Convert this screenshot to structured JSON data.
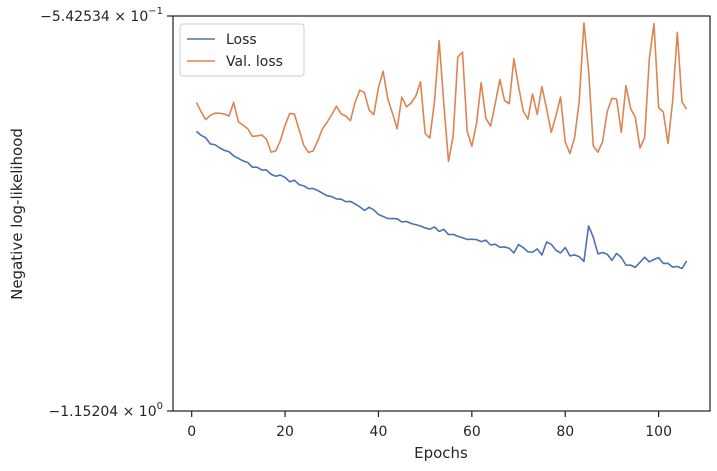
{
  "chart_data": {
    "type": "line",
    "xlabel": "Epochs",
    "ylabel": "Negative log-likelihood",
    "xlim": [
      -4,
      111
    ],
    "ylim": [
      -1.15204,
      -0.542534
    ],
    "xticks": [
      0,
      20,
      40,
      60,
      80,
      100
    ],
    "xtick_labels": [
      "0",
      "20",
      "40",
      "60",
      "80",
      "100"
    ],
    "ytick_labels": {
      "top": {
        "base": "−5.42534",
        "mult": " × 10",
        "exp": "−1"
      },
      "bottom": {
        "base": "−1.15204",
        "mult": " × 10",
        "exp": "0"
      }
    },
    "yscale": "symlog",
    "grid": false,
    "legend": {
      "placement": "top-left"
    },
    "x": [
      1,
      2,
      3,
      4,
      5,
      6,
      7,
      8,
      9,
      10,
      11,
      12,
      13,
      14,
      15,
      16,
      17,
      18,
      19,
      20,
      21,
      22,
      23,
      24,
      25,
      26,
      27,
      28,
      29,
      30,
      31,
      32,
      33,
      34,
      35,
      36,
      37,
      38,
      39,
      40,
      41,
      42,
      43,
      44,
      45,
      46,
      47,
      48,
      49,
      50,
      51,
      52,
      53,
      54,
      55,
      56,
      57,
      58,
      59,
      60,
      61,
      62,
      63,
      64,
      65,
      66,
      67,
      68,
      69,
      70,
      71,
      72,
      73,
      74,
      75,
      76,
      77,
      78,
      79,
      80,
      81,
      82,
      83,
      84,
      85,
      86,
      87,
      88,
      89,
      90,
      91,
      92,
      93,
      94,
      95,
      96,
      97,
      98,
      99,
      100,
      101,
      102,
      103,
      104,
      105,
      106
    ],
    "series": [
      {
        "name": "Loss",
        "color": "#4c72b0",
        "values": [
          -0.7205,
          -0.7266,
          -0.7303,
          -0.74,
          -0.7412,
          -0.746,
          -0.7498,
          -0.752,
          -0.7584,
          -0.7621,
          -0.7661,
          -0.7684,
          -0.7758,
          -0.7759,
          -0.7801,
          -0.7801,
          -0.7867,
          -0.7898,
          -0.788,
          -0.7916,
          -0.7984,
          -0.796,
          -0.8027,
          -0.8046,
          -0.809,
          -0.8087,
          -0.8118,
          -0.8159,
          -0.8199,
          -0.8212,
          -0.8248,
          -0.8252,
          -0.8291,
          -0.8286,
          -0.8325,
          -0.837,
          -0.8425,
          -0.8378,
          -0.8418,
          -0.8487,
          -0.8519,
          -0.8551,
          -0.8551,
          -0.8555,
          -0.8603,
          -0.8595,
          -0.8627,
          -0.8646,
          -0.8666,
          -0.8696,
          -0.8715,
          -0.868,
          -0.8749,
          -0.8717,
          -0.8798,
          -0.8795,
          -0.8824,
          -0.8847,
          -0.8873,
          -0.887,
          -0.8876,
          -0.8907,
          -0.8884,
          -0.8959,
          -0.8946,
          -0.8995,
          -0.8989,
          -0.9009,
          -0.9082,
          -0.8951,
          -0.8999,
          -0.9063,
          -0.9071,
          -0.9019,
          -0.9114,
          -0.8912,
          -0.8948,
          -0.904,
          -0.9082,
          -0.8998,
          -0.9127,
          -0.9112,
          -0.914,
          -0.9212,
          -0.8664,
          -0.8837,
          -0.9095,
          -0.9075,
          -0.9101,
          -0.9196,
          -0.9089,
          -0.915,
          -0.9269,
          -0.927,
          -0.9304,
          -0.9226,
          -0.9148,
          -0.9218,
          -0.9182,
          -0.9153,
          -0.9244,
          -0.9242,
          -0.93,
          -0.929,
          -0.9322,
          -0.9207
        ]
      },
      {
        "name": "Val. loss",
        "color": "#dd8452",
        "values": [
          -0.6759,
          -0.69,
          -0.7024,
          -0.6958,
          -0.6924,
          -0.6926,
          -0.6938,
          -0.6969,
          -0.6759,
          -0.7057,
          -0.711,
          -0.7165,
          -0.7282,
          -0.7276,
          -0.7261,
          -0.7323,
          -0.7526,
          -0.7509,
          -0.7347,
          -0.7109,
          -0.6929,
          -0.6939,
          -0.7181,
          -0.7418,
          -0.753,
          -0.7507,
          -0.7353,
          -0.7166,
          -0.7065,
          -0.6947,
          -0.6816,
          -0.6935,
          -0.6968,
          -0.704,
          -0.6754,
          -0.657,
          -0.6607,
          -0.6877,
          -0.6949,
          -0.653,
          -0.6278,
          -0.6705,
          -0.6925,
          -0.7166,
          -0.6676,
          -0.6826,
          -0.6767,
          -0.6659,
          -0.644,
          -0.7237,
          -0.7309,
          -0.6744,
          -0.5808,
          -0.6783,
          -0.767,
          -0.7276,
          -0.6055,
          -0.5984,
          -0.7202,
          -0.7436,
          -0.7085,
          -0.6454,
          -0.7004,
          -0.7125,
          -0.6779,
          -0.6404,
          -0.673,
          -0.6778,
          -0.6086,
          -0.6512,
          -0.6891,
          -0.7016,
          -0.6627,
          -0.6944,
          -0.6515,
          -0.6852,
          -0.7222,
          -0.6967,
          -0.6676,
          -0.7369,
          -0.7548,
          -0.7303,
          -0.6743,
          -0.5532,
          -0.6265,
          -0.743,
          -0.7527,
          -0.7362,
          -0.6897,
          -0.6696,
          -0.6708,
          -0.722,
          -0.6499,
          -0.6852,
          -0.6988,
          -0.7462,
          -0.7303,
          -0.6089,
          -0.5541,
          -0.6838,
          -0.6907,
          -0.7392,
          -0.6744,
          -0.5676,
          -0.6753,
          -0.6864
        ]
      }
    ]
  }
}
